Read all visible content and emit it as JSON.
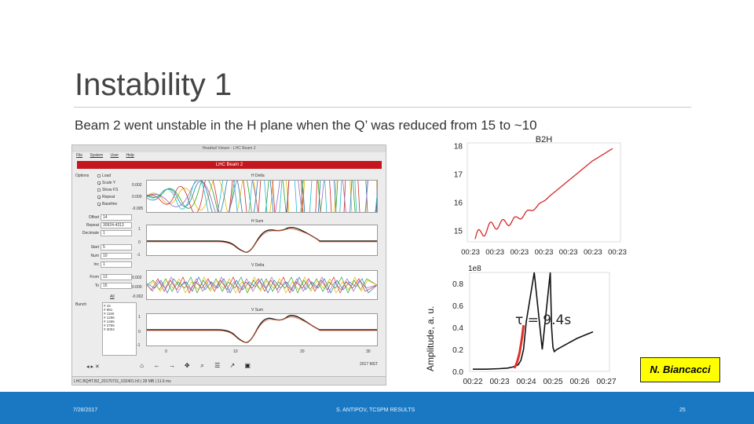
{
  "slide": {
    "title": "Instability 1",
    "subtitle": "Beam 2 went unstable in the H plane when the Q’ was reduced from 15 to ~10",
    "credit": "N. Biancacci"
  },
  "app": {
    "window_title": "Headtail Viewer - LHC Beam 2",
    "menu": [
      "File",
      "System",
      "User",
      "Help"
    ],
    "banner": "LHC Beam 2",
    "options_label": "Options",
    "options": [
      {
        "label": "Load",
        "checked": false
      },
      {
        "label": "Scale Y",
        "checked": true
      },
      {
        "label": "Show FS",
        "checked": false
      },
      {
        "label": "Repeat",
        "checked": true
      },
      {
        "label": "Baseline",
        "checked": true
      }
    ],
    "fields": [
      {
        "label": "Offset",
        "value": "14"
      },
      {
        "label": "Repeat",
        "value": "30924-4313"
      },
      {
        "label": "Decimate",
        "value": "1"
      },
      {
        "label": "Start",
        "value": "5"
      },
      {
        "label": "Num",
        "value": "10"
      },
      {
        "label": "Inc",
        "value": "1"
      },
      {
        "label": "From",
        "value": "13"
      },
      {
        "label": "To",
        "value": "15"
      }
    ],
    "all_button": "All",
    "bunch_label": "Bunch",
    "bunches": [
      "# 15",
      "# 981",
      "# 1150",
      "# 1296",
      "# 1465",
      "# 2755",
      "# 3004"
    ],
    "plots": [
      {
        "title": "H Delta",
        "yticks": [
          "0.002",
          "0.000",
          "-0.005"
        ]
      },
      {
        "title": "H Sum",
        "yticks": [
          "1",
          "0",
          "-1"
        ]
      },
      {
        "title": "V Delta",
        "yticks": [
          "0.002",
          "0.000",
          "-0.002"
        ]
      },
      {
        "title": "V Sum",
        "yticks": [
          "1",
          "0",
          "-1"
        ]
      }
    ],
    "xticks": [
      "0",
      "10",
      "20",
      "30"
    ],
    "status": "LHC.BQHT.B2_20170731_032401.h5   |  28 MB  |  11.6 ms",
    "clock": "2017 MST"
  },
  "chart_data": [
    {
      "type": "line",
      "title": "B2H",
      "xlabel": "",
      "ylabel": "",
      "ylim": [
        14.6,
        18.1
      ],
      "yticks": [
        15,
        16,
        17,
        18
      ],
      "xticks": [
        "00:23",
        "00:23",
        "00:23",
        "00:23",
        "00:23",
        "00:23",
        "00:23"
      ],
      "series": [
        {
          "name": "B2H",
          "color": "#d62728",
          "x": [
            0,
            0.05,
            0.1,
            0.15,
            0.2,
            0.25,
            0.3,
            0.35,
            0.4,
            0.45,
            0.5,
            0.55,
            0.6,
            0.65,
            0.7,
            0.75,
            0.8,
            0.85,
            0.9,
            0.95,
            1.0
          ],
          "y": [
            14.7,
            14.95,
            15.1,
            15.2,
            15.25,
            15.3,
            15.4,
            15.55,
            15.7,
            15.85,
            16.05,
            16.25,
            16.45,
            16.65,
            16.85,
            17.05,
            17.25,
            17.45,
            17.6,
            17.75,
            17.9
          ]
        }
      ]
    },
    {
      "type": "line",
      "title": "",
      "ylabel": "Amplitude, a. u.",
      "scale_label": "1e8",
      "annotation": "τ = 9.4s",
      "ylim": [
        0,
        0.9
      ],
      "yticks": [
        "0.0",
        "0.2",
        "0.4",
        "0.6",
        "0.8"
      ],
      "xticks": [
        "00:22",
        "00:23",
        "00:24",
        "00:25",
        "00:26",
        "00:27"
      ],
      "series": [
        {
          "name": "signal",
          "color": "#111111",
          "x": [
            0,
            0.5,
            1.0,
            1.3,
            1.5,
            1.7,
            1.8,
            1.9,
            2.0,
            2.3,
            2.6,
            2.9,
            2.95,
            3.0,
            3.05,
            3.15,
            3.3,
            3.6,
            3.9,
            4.2,
            4.5
          ],
          "y": [
            0.02,
            0.02,
            0.025,
            0.03,
            0.04,
            0.06,
            0.1,
            0.2,
            0.45,
            0.9,
            0.2,
            0.9,
            0.4,
            0.22,
            0.18,
            0.2,
            0.22,
            0.26,
            0.3,
            0.33,
            0.36
          ]
        },
        {
          "name": "fit",
          "color": "#e0302a",
          "x": [
            1.55,
            1.6,
            1.65,
            1.7,
            1.75,
            1.8,
            1.85,
            1.9
          ],
          "y": [
            0.03,
            0.05,
            0.08,
            0.12,
            0.17,
            0.24,
            0.32,
            0.42
          ]
        }
      ]
    }
  ],
  "footer": {
    "date": "7/28/2017",
    "center": "S. ANTIPOV, TCSPM RESULTS",
    "page": "25"
  },
  "colors": {
    "footer_bg": "#1a78c2",
    "banner_red": "#c4161c",
    "credit_bg": "#ffff00"
  }
}
